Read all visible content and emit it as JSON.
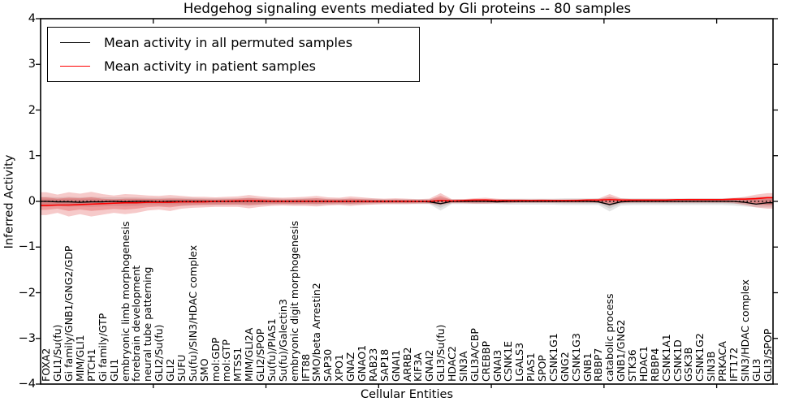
{
  "figure": {
    "title": "Hedgehog signaling events mediated by Gli proteins -- 80 samples",
    "xlabel": "Cellular Entities",
    "ylabel": "Inferred Activity"
  },
  "legend": {
    "entries": [
      {
        "label": "Mean activity in all permuted samples",
        "color": "#000000"
      },
      {
        "label": "Mean activity in patient samples",
        "color": "#ff0000"
      }
    ]
  },
  "chart_data": {
    "type": "line",
    "title": "Hedgehog signaling events mediated by Gli proteins -- 80 samples",
    "xlabel": "Cellular Entities",
    "ylabel": "Inferred Activity",
    "ylim": [
      -4,
      4
    ],
    "yticks": [
      4,
      3,
      2,
      1,
      0,
      -1,
      -2,
      -3,
      -4
    ],
    "x_major_ticks": [
      10,
      20,
      30,
      40,
      50,
      60
    ],
    "grid": false,
    "legend_position": "upper left",
    "zero_line": {
      "y": 0,
      "style": "dotted",
      "color": "#000000"
    },
    "categories": [
      "FOXA2",
      "GLI1/Su(fu)",
      "Gi family/GNB1/GNG2/GDP",
      "MIM/GLI1",
      "PTCH1",
      "Gi family/GTP",
      "GLI1",
      "embryonic limb morphogenesis",
      "forebrain development",
      "neural tube patterning",
      "GLI2/Su(fu)",
      "GLI2",
      "SUFU",
      "Su(fu)/SIN3/HDAC complex",
      "SMO",
      "mol:GDP",
      "mol:GTP",
      "MTSS1",
      "MIM/GLI2A",
      "GLI2/SPOP",
      "Su(fu)/PIAS1",
      "Su(fu)/Galectin3",
      "embryonic digit morphogenesis",
      "IFT88",
      "SMO/beta Arrestin2",
      "SAP30",
      "XPO1",
      "GNAZ",
      "GNAO1",
      "RAB23",
      "SAP18",
      "GNAI1",
      "ARRB2",
      "KIF3A",
      "GNAI2",
      "GLI3/Su(fu)",
      "HDAC2",
      "SIN3A",
      "GLI3A/CBP",
      "CREBBP",
      "GNAI3",
      "CSNK1E",
      "LGALS3",
      "PIAS1",
      "SPOP",
      "CSNK1G1",
      "GNG2",
      "CSNK1G3",
      "GNB1",
      "RBBP7",
      "catabolic process",
      "GNB1/GNG2",
      "STK36",
      "HDAC1",
      "RBBP4",
      "CSNK1A1",
      "CSNK1D",
      "GSK3B",
      "CSNK1G2",
      "SIN3B",
      "PRKACA",
      "IFT172",
      "SIN3/HDAC complex",
      "GLI3",
      "GLI3/SPOP"
    ],
    "series": [
      {
        "name": "Mean activity in all permuted samples",
        "color": "#000000",
        "values": [
          0,
          -0.01,
          -0.01,
          -0.02,
          -0.01,
          -0.01,
          0,
          -0.01,
          0,
          0,
          -0.01,
          0,
          0,
          0,
          0,
          0,
          0,
          0,
          0.01,
          0,
          0,
          0,
          0,
          0,
          0,
          0,
          0,
          0,
          0,
          0,
          0,
          0,
          0,
          0,
          -0.01,
          -0.05,
          0,
          0,
          0,
          0,
          -0.01,
          0,
          0,
          0,
          0,
          0,
          0,
          0,
          0,
          -0.01,
          -0.07,
          -0.01,
          0,
          0,
          0,
          0,
          0,
          0,
          0,
          0,
          0,
          0,
          -0.02,
          -0.06,
          -0.03
        ]
      },
      {
        "name": "Mean activity in patient samples",
        "color": "#ff0000",
        "values": [
          -0.09,
          -0.08,
          -0.08,
          -0.07,
          -0.06,
          -0.05,
          -0.04,
          -0.03,
          -0.03,
          -0.02,
          -0.02,
          -0.02,
          -0.01,
          -0.01,
          -0.01,
          0,
          0,
          0.01,
          0.01,
          0.01,
          0,
          0,
          0,
          0,
          0,
          0,
          0,
          0,
          0,
          0,
          0,
          0,
          0,
          0,
          0,
          0.02,
          0.01,
          0.02,
          0.03,
          0.03,
          0.02,
          0.02,
          0.02,
          0.02,
          0.02,
          0.02,
          0.02,
          0.02,
          0.03,
          0.03,
          0.04,
          0.03,
          0.03,
          0.03,
          0.03,
          0.03,
          0.04,
          0.04,
          0.04,
          0.04,
          0.04,
          0.05,
          0.05,
          0.06,
          0.08
        ]
      }
    ],
    "bands": [
      {
        "name": "permuted-samples-range",
        "color": "#999999",
        "upper": [
          0.1,
          0.09,
          0.1,
          0.09,
          0.1,
          0.09,
          0.09,
          0.09,
          0.09,
          0.08,
          0.08,
          0.08,
          0.08,
          0.08,
          0.07,
          0.07,
          0.07,
          0.07,
          0.08,
          0.07,
          0.07,
          0.06,
          0.06,
          0.07,
          0.07,
          0.06,
          0.06,
          0.06,
          0.06,
          0.06,
          0.05,
          0.05,
          0.05,
          0.05,
          0.05,
          0.08,
          0.05,
          0.05,
          0.05,
          0.05,
          0.05,
          0.06,
          0.06,
          0.06,
          0.06,
          0.06,
          0.07,
          0.07,
          0.07,
          0.07,
          0.08,
          0.07,
          0.07,
          0.07,
          0.07,
          0.07,
          0.07,
          0.07,
          0.07,
          0.07,
          0.07,
          0.08,
          0.09,
          0.1,
          0.1
        ],
        "lower": [
          -0.12,
          -0.1,
          -0.12,
          -0.11,
          -0.12,
          -0.11,
          -0.1,
          -0.11,
          -0.1,
          -0.09,
          -0.09,
          -0.09,
          -0.09,
          -0.08,
          -0.08,
          -0.08,
          -0.08,
          -0.08,
          -0.09,
          -0.08,
          -0.07,
          -0.07,
          -0.07,
          -0.07,
          -0.08,
          -0.07,
          -0.07,
          -0.07,
          -0.07,
          -0.06,
          -0.06,
          -0.06,
          -0.06,
          -0.06,
          -0.06,
          -0.2,
          -0.06,
          -0.06,
          -0.06,
          -0.06,
          -0.06,
          -0.07,
          -0.07,
          -0.07,
          -0.07,
          -0.07,
          -0.08,
          -0.08,
          -0.08,
          -0.08,
          -0.22,
          -0.09,
          -0.08,
          -0.08,
          -0.08,
          -0.08,
          -0.08,
          -0.08,
          -0.08,
          -0.08,
          -0.08,
          -0.09,
          -0.11,
          -0.13,
          -0.13
        ]
      },
      {
        "name": "patient-samples-range",
        "color": "#dd3333",
        "upper": [
          0.2,
          0.15,
          0.2,
          0.17,
          0.21,
          0.16,
          0.13,
          0.16,
          0.15,
          0.13,
          0.12,
          0.14,
          0.12,
          0.1,
          0.1,
          0.09,
          0.1,
          0.11,
          0.14,
          0.11,
          0.09,
          0.08,
          0.09,
          0.1,
          0.12,
          0.09,
          0.08,
          0.11,
          0.09,
          0.07,
          0.06,
          0.07,
          0.06,
          0.05,
          0.06,
          0.18,
          0.05,
          0.05,
          0.07,
          0.08,
          0.06,
          0.05,
          0.05,
          0.04,
          0.05,
          0.04,
          0.04,
          0.05,
          0.05,
          0.06,
          0.16,
          0.07,
          0.05,
          0.05,
          0.05,
          0.05,
          0.05,
          0.06,
          0.06,
          0.06,
          0.06,
          0.07,
          0.1,
          0.15,
          0.18
        ],
        "lower": [
          -0.3,
          -0.25,
          -0.33,
          -0.28,
          -0.33,
          -0.29,
          -0.25,
          -0.28,
          -0.25,
          -0.2,
          -0.18,
          -0.21,
          -0.16,
          -0.14,
          -0.13,
          -0.12,
          -0.12,
          -0.12,
          -0.15,
          -0.12,
          -0.1,
          -0.09,
          -0.1,
          -0.1,
          -0.11,
          -0.09,
          -0.08,
          -0.1,
          -0.08,
          -0.07,
          -0.06,
          -0.06,
          -0.06,
          -0.05,
          -0.05,
          -0.08,
          -0.04,
          -0.04,
          -0.05,
          -0.05,
          -0.04,
          -0.04,
          -0.03,
          -0.03,
          -0.03,
          -0.03,
          -0.03,
          -0.03,
          -0.03,
          -0.03,
          -0.1,
          -0.04,
          -0.03,
          -0.03,
          -0.03,
          -0.03,
          -0.03,
          -0.03,
          -0.03,
          -0.03,
          -0.03,
          -0.04,
          -0.08,
          -0.13,
          -0.16
        ]
      }
    ]
  }
}
